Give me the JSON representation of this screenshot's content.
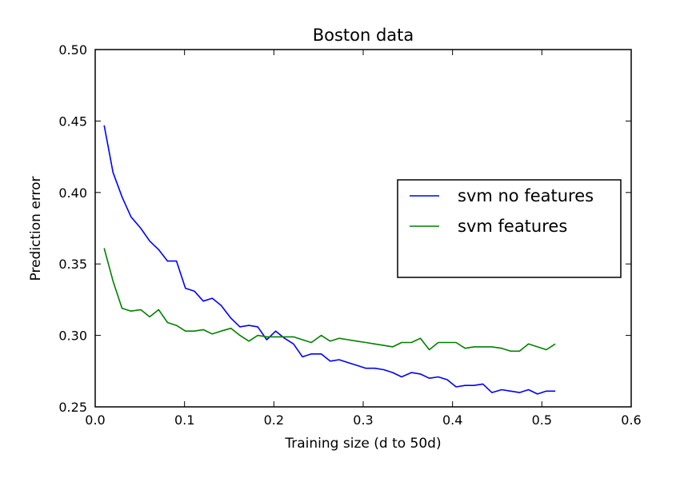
{
  "chart_data": {
    "type": "line",
    "title": "Boston data",
    "xlabel": "Training size (d to 50d)",
    "ylabel": "Prediction error",
    "xlim": [
      0.0,
      0.6
    ],
    "ylim": [
      0.25,
      0.5
    ],
    "xticks": [
      "0.0",
      "0.1",
      "0.2",
      "0.3",
      "0.4",
      "0.5",
      "0.6"
    ],
    "yticks": [
      "0.25",
      "0.30",
      "0.35",
      "0.40",
      "0.45",
      "0.50"
    ],
    "grid": false,
    "legend_position": "center-right",
    "x": [
      0.01,
      0.02,
      0.03,
      0.04,
      0.051,
      0.061,
      0.071,
      0.081,
      0.091,
      0.101,
      0.111,
      0.121,
      0.131,
      0.141,
      0.152,
      0.162,
      0.172,
      0.182,
      0.192,
      0.202,
      0.212,
      0.222,
      0.232,
      0.242,
      0.253,
      0.263,
      0.273,
      0.283,
      0.293,
      0.303,
      0.313,
      0.323,
      0.333,
      0.343,
      0.354,
      0.364,
      0.374,
      0.384,
      0.394,
      0.404,
      0.414,
      0.424,
      0.434,
      0.444,
      0.455,
      0.465,
      0.475,
      0.485,
      0.495,
      0.505,
      0.515
    ],
    "series": [
      {
        "name": "svm no features",
        "color": "#0000ff",
        "values": [
          0.447,
          0.414,
          0.397,
          0.383,
          0.375,
          0.366,
          0.36,
          0.352,
          0.352,
          0.333,
          0.331,
          0.324,
          0.326,
          0.321,
          0.312,
          0.306,
          0.307,
          0.306,
          0.297,
          0.303,
          0.298,
          0.294,
          0.285,
          0.287,
          0.287,
          0.282,
          0.283,
          0.281,
          0.279,
          0.277,
          0.277,
          0.276,
          0.274,
          0.271,
          0.274,
          0.273,
          0.27,
          0.271,
          0.269,
          0.264,
          0.265,
          0.265,
          0.266,
          0.26,
          0.262,
          0.261,
          0.26,
          0.262,
          0.259,
          0.261,
          0.261
        ]
      },
      {
        "name": "svm features",
        "color": "#008000",
        "values": [
          0.361,
          0.338,
          0.319,
          0.317,
          0.318,
          0.313,
          0.318,
          0.309,
          0.307,
          0.303,
          0.303,
          0.304,
          0.301,
          0.303,
          0.305,
          0.3,
          0.296,
          0.3,
          0.299,
          0.299,
          0.299,
          0.299,
          0.297,
          0.295,
          0.3,
          0.296,
          0.298,
          0.297,
          0.296,
          0.295,
          0.294,
          0.293,
          0.292,
          0.295,
          0.295,
          0.298,
          0.29,
          0.295,
          0.295,
          0.295,
          0.291,
          0.292,
          0.292,
          0.292,
          0.291,
          0.289,
          0.289,
          0.294,
          0.292,
          0.29,
          0.294
        ]
      }
    ]
  }
}
